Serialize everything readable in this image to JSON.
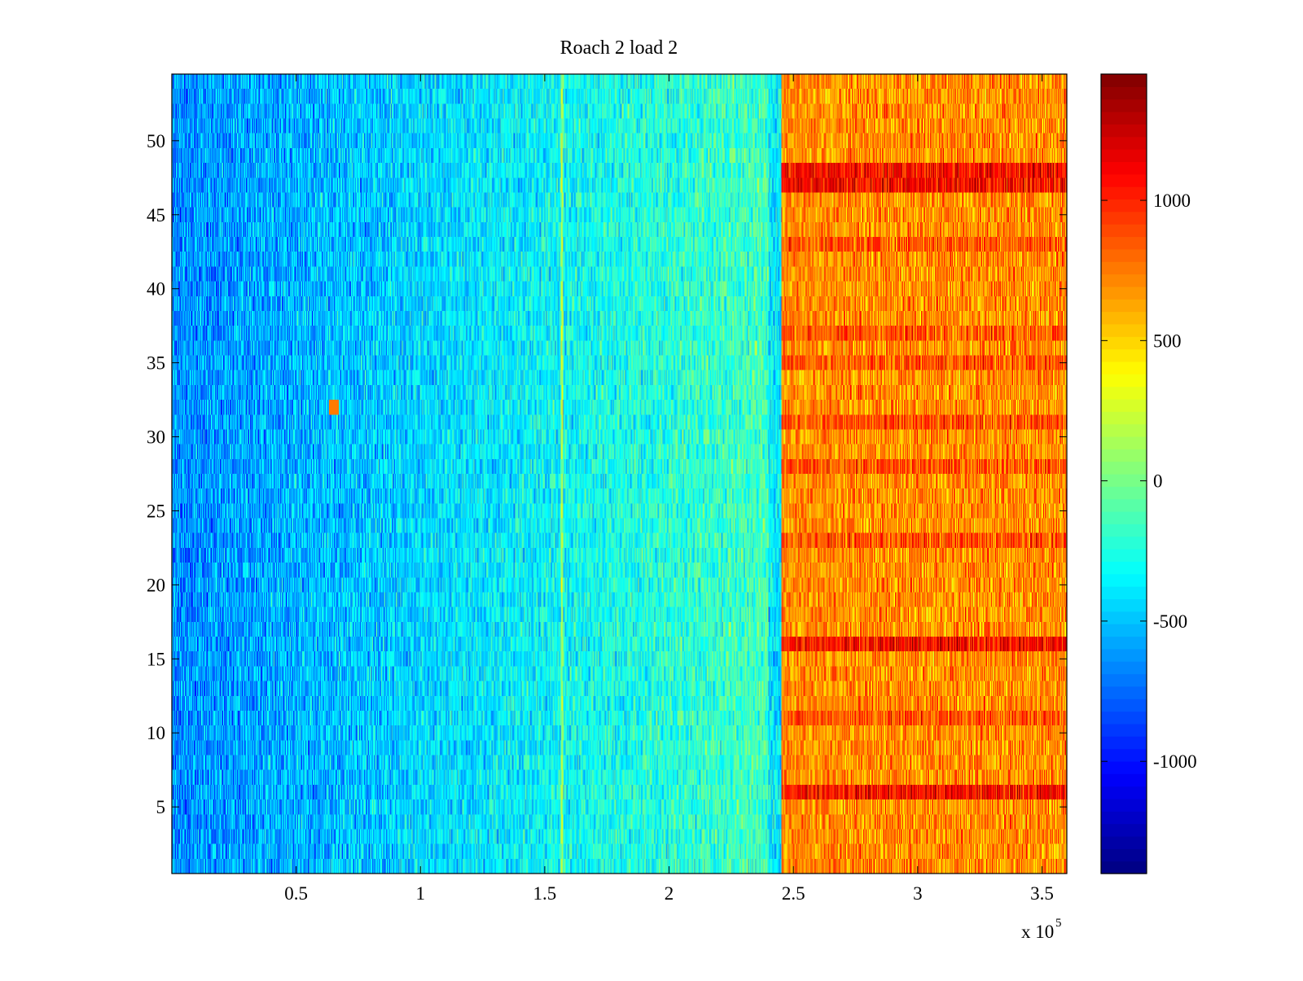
{
  "chart_data": {
    "type": "heatmap",
    "title": "Roach 2 load 2",
    "xlabel": "",
    "ylabel": "",
    "x_multiplier_label": "x 10",
    "x_multiplier_exponent": "5",
    "xlim": [
      0,
      3.6
    ],
    "ylim": [
      0.5,
      54.5
    ],
    "x_ticks": [
      {
        "value": 0.5,
        "label": "0.5"
      },
      {
        "value": 1,
        "label": "1"
      },
      {
        "value": 1.5,
        "label": "1.5"
      },
      {
        "value": 2,
        "label": "2"
      },
      {
        "value": 2.5,
        "label": "2.5"
      },
      {
        "value": 3,
        "label": "3"
      },
      {
        "value": 3.5,
        "label": "3.5"
      }
    ],
    "y_ticks": [
      {
        "value": 5,
        "label": "5"
      },
      {
        "value": 10,
        "label": "10"
      },
      {
        "value": 15,
        "label": "15"
      },
      {
        "value": 20,
        "label": "20"
      },
      {
        "value": 25,
        "label": "25"
      },
      {
        "value": 30,
        "label": "30"
      },
      {
        "value": 35,
        "label": "35"
      },
      {
        "value": 40,
        "label": "40"
      },
      {
        "value": 45,
        "label": "45"
      },
      {
        "value": 50,
        "label": "50"
      }
    ],
    "colorbar": {
      "colormap": "jet",
      "clim": [
        -1400,
        1450
      ],
      "ticks": [
        {
          "value": -1000,
          "label": "-1000"
        },
        {
          "value": -500,
          "label": "-500"
        },
        {
          "value": 0,
          "label": "0"
        },
        {
          "value": 500,
          "label": "500"
        },
        {
          "value": 1000,
          "label": "1000"
        }
      ]
    },
    "rows": 54,
    "value_profile": {
      "description_regions": [
        {
          "x_range": [
            0,
            0.5
          ],
          "mean": -620
        },
        {
          "x_range": [
            0.5,
            1.0
          ],
          "mean": -420
        },
        {
          "x_range": [
            1.0,
            1.5
          ],
          "mean": -250
        },
        {
          "x_range": [
            1.5,
            2.4
          ],
          "mean": -150
        },
        {
          "x_range": [
            2.4,
            2.45
          ],
          "mean": -380
        },
        {
          "x_range": [
            2.45,
            3.6
          ],
          "mean": 700
        }
      ],
      "hot_rows": [
        6,
        16,
        47,
        48
      ],
      "warm_rows": [
        11,
        23,
        28,
        31,
        35,
        37,
        43
      ],
      "vertical_line_x": 1.57,
      "hot_spot": {
        "x": 0.65,
        "y": 32,
        "value": 750
      }
    },
    "grid": false
  }
}
